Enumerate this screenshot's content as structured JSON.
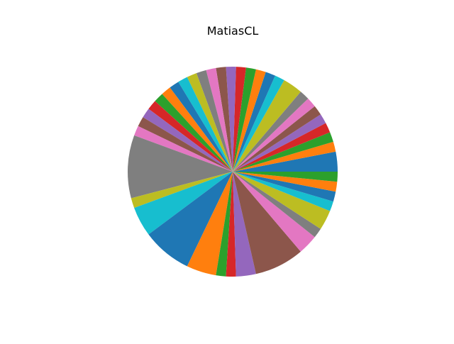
{
  "chart_data": {
    "type": "pie",
    "title": "MatiasCL",
    "start_angle_deg": 0,
    "direction": "counterclockwise",
    "legend": "none",
    "values": [
      30,
      15,
      15,
      15,
      15,
      15,
      15,
      15,
      30,
      15,
      15,
      15,
      15,
      15,
      15,
      15,
      15,
      15,
      15,
      15,
      15,
      15,
      15,
      15,
      15,
      15,
      15,
      95,
      15,
      45,
      75,
      45,
      15,
      15,
      30,
      75,
      30,
      15,
      30,
      15,
      15,
      15,
      15
    ],
    "colors": [
      "#1f77b4",
      "#ff7f0e",
      "#2ca02c",
      "#d62728",
      "#9467bd",
      "#8c564b",
      "#e377c2",
      "#7f7f7f",
      "#bcbd22",
      "#17becf"
    ]
  }
}
